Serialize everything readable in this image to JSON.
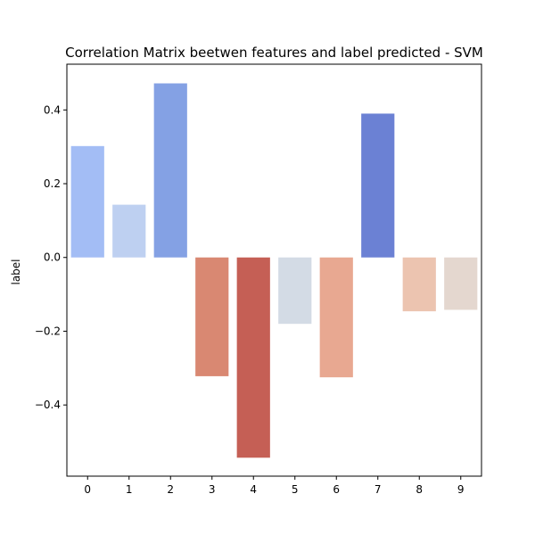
{
  "chart_data": {
    "type": "bar",
    "title": "Correlation Matrix beetwen features and label predicted - SVM",
    "xlabel": "",
    "ylabel": "label",
    "categories": [
      "0",
      "1",
      "2",
      "3",
      "4",
      "5",
      "6",
      "7",
      "8",
      "9"
    ],
    "values": [
      0.302,
      0.143,
      0.472,
      -0.322,
      -0.543,
      -0.18,
      -0.325,
      0.39,
      -0.146,
      -0.142
    ],
    "colors": [
      "#a3bdf5",
      "#bed0f1",
      "#84a1e4",
      "#d98872",
      "#c55f55",
      "#d3dbe5",
      "#e8a891",
      "#6b81d4",
      "#ecc4b0",
      "#e4d7cf"
    ],
    "ylim": [
      -0.593,
      0.524
    ],
    "yticks": [
      {
        "value": 0.4,
        "label": "0.4"
      },
      {
        "value": 0.2,
        "label": "0.2"
      },
      {
        "value": 0.0,
        "label": "0.0"
      },
      {
        "value": -0.2,
        "label": "−0.2"
      },
      {
        "value": -0.4,
        "label": "−0.4"
      }
    ],
    "grid": false,
    "legend": "none"
  }
}
